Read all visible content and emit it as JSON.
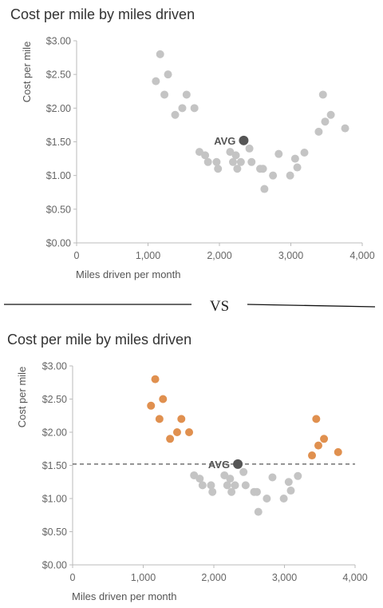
{
  "divider": {
    "label": "VS"
  },
  "colors": {
    "neutral_point": "#c4c4c4",
    "highlight_point": "#e0904f",
    "avg_point": "#555555",
    "axis": "#bbbbbb",
    "avg_line": "#555555"
  },
  "chart_data": [
    {
      "type": "scatter",
      "title": "Cost per mile by miles driven",
      "xlabel": "Miles driven per month",
      "ylabel": "Cost per mile",
      "xlim": [
        0,
        4000
      ],
      "ylim": [
        0,
        3
      ],
      "x_ticks": [
        0,
        1000,
        2000,
        3000,
        4000
      ],
      "x_tick_labels": [
        "0",
        "1,000",
        "2,000",
        "3,000",
        "4,000"
      ],
      "y_ticks": [
        0,
        0.5,
        1,
        1.5,
        2,
        2.5,
        3
      ],
      "y_tick_labels": [
        "$0.00",
        "$0.50",
        "$1.00",
        "$1.50",
        "$2.00",
        "$2.50",
        "$3.00"
      ],
      "grid": false,
      "avg_reference_line": false,
      "highlight_outliers": false,
      "avg": {
        "label": "AVG",
        "x": 2340,
        "y": 1.52
      },
      "points": [
        {
          "x": 1110,
          "y": 2.4
        },
        {
          "x": 1170,
          "y": 2.8
        },
        {
          "x": 1230,
          "y": 2.2
        },
        {
          "x": 1280,
          "y": 2.5
        },
        {
          "x": 1380,
          "y": 1.9
        },
        {
          "x": 1480,
          "y": 2.0
        },
        {
          "x": 1540,
          "y": 2.2
        },
        {
          "x": 1650,
          "y": 2.0
        },
        {
          "x": 1720,
          "y": 1.35
        },
        {
          "x": 1800,
          "y": 1.3
        },
        {
          "x": 1840,
          "y": 1.2
        },
        {
          "x": 1960,
          "y": 1.2
        },
        {
          "x": 1980,
          "y": 1.1
        },
        {
          "x": 2150,
          "y": 1.35
        },
        {
          "x": 2190,
          "y": 1.2
        },
        {
          "x": 2230,
          "y": 1.3
        },
        {
          "x": 2250,
          "y": 1.1
        },
        {
          "x": 2300,
          "y": 1.2
        },
        {
          "x": 2420,
          "y": 1.4
        },
        {
          "x": 2450,
          "y": 1.2
        },
        {
          "x": 2570,
          "y": 1.1
        },
        {
          "x": 2610,
          "y": 1.1
        },
        {
          "x": 2630,
          "y": 0.8
        },
        {
          "x": 2750,
          "y": 1.0
        },
        {
          "x": 2830,
          "y": 1.32
        },
        {
          "x": 2990,
          "y": 1.0
        },
        {
          "x": 3060,
          "y": 1.25
        },
        {
          "x": 3090,
          "y": 1.12
        },
        {
          "x": 3190,
          "y": 1.34
        },
        {
          "x": 3390,
          "y": 1.65
        },
        {
          "x": 3450,
          "y": 2.2
        },
        {
          "x": 3480,
          "y": 1.8
        },
        {
          "x": 3560,
          "y": 1.9
        },
        {
          "x": 3760,
          "y": 1.7
        }
      ]
    },
    {
      "type": "scatter",
      "title": "Cost per mile by miles driven",
      "xlabel": "Miles driven per month",
      "ylabel": "Cost per mile",
      "xlim": [
        0,
        4000
      ],
      "ylim": [
        0,
        3
      ],
      "x_ticks": [
        0,
        1000,
        2000,
        3000,
        4000
      ],
      "x_tick_labels": [
        "0",
        "1,000",
        "2,000",
        "3,000",
        "4,000"
      ],
      "y_ticks": [
        0,
        0.5,
        1,
        1.5,
        2,
        2.5,
        3
      ],
      "y_tick_labels": [
        "$0.00",
        "$0.50",
        "$1.00",
        "$1.50",
        "$2.00",
        "$2.50",
        "$3.00"
      ],
      "grid": false,
      "avg_reference_line": true,
      "highlight_outliers": true,
      "avg": {
        "label": "AVG",
        "x": 2340,
        "y": 1.52
      },
      "points": [
        {
          "x": 1110,
          "y": 2.4
        },
        {
          "x": 1170,
          "y": 2.8
        },
        {
          "x": 1230,
          "y": 2.2
        },
        {
          "x": 1280,
          "y": 2.5
        },
        {
          "x": 1380,
          "y": 1.9
        },
        {
          "x": 1480,
          "y": 2.0
        },
        {
          "x": 1540,
          "y": 2.2
        },
        {
          "x": 1650,
          "y": 2.0
        },
        {
          "x": 1720,
          "y": 1.35
        },
        {
          "x": 1800,
          "y": 1.3
        },
        {
          "x": 1840,
          "y": 1.2
        },
        {
          "x": 1960,
          "y": 1.2
        },
        {
          "x": 1980,
          "y": 1.1
        },
        {
          "x": 2150,
          "y": 1.35
        },
        {
          "x": 2190,
          "y": 1.2
        },
        {
          "x": 2230,
          "y": 1.3
        },
        {
          "x": 2250,
          "y": 1.1
        },
        {
          "x": 2300,
          "y": 1.2
        },
        {
          "x": 2420,
          "y": 1.4
        },
        {
          "x": 2450,
          "y": 1.2
        },
        {
          "x": 2570,
          "y": 1.1
        },
        {
          "x": 2610,
          "y": 1.1
        },
        {
          "x": 2630,
          "y": 0.8
        },
        {
          "x": 2750,
          "y": 1.0
        },
        {
          "x": 2830,
          "y": 1.32
        },
        {
          "x": 2990,
          "y": 1.0
        },
        {
          "x": 3060,
          "y": 1.25
        },
        {
          "x": 3090,
          "y": 1.12
        },
        {
          "x": 3190,
          "y": 1.34
        },
        {
          "x": 3390,
          "y": 1.65
        },
        {
          "x": 3450,
          "y": 2.2
        },
        {
          "x": 3480,
          "y": 1.8
        },
        {
          "x": 3560,
          "y": 1.9
        },
        {
          "x": 3760,
          "y": 1.7
        }
      ]
    }
  ]
}
